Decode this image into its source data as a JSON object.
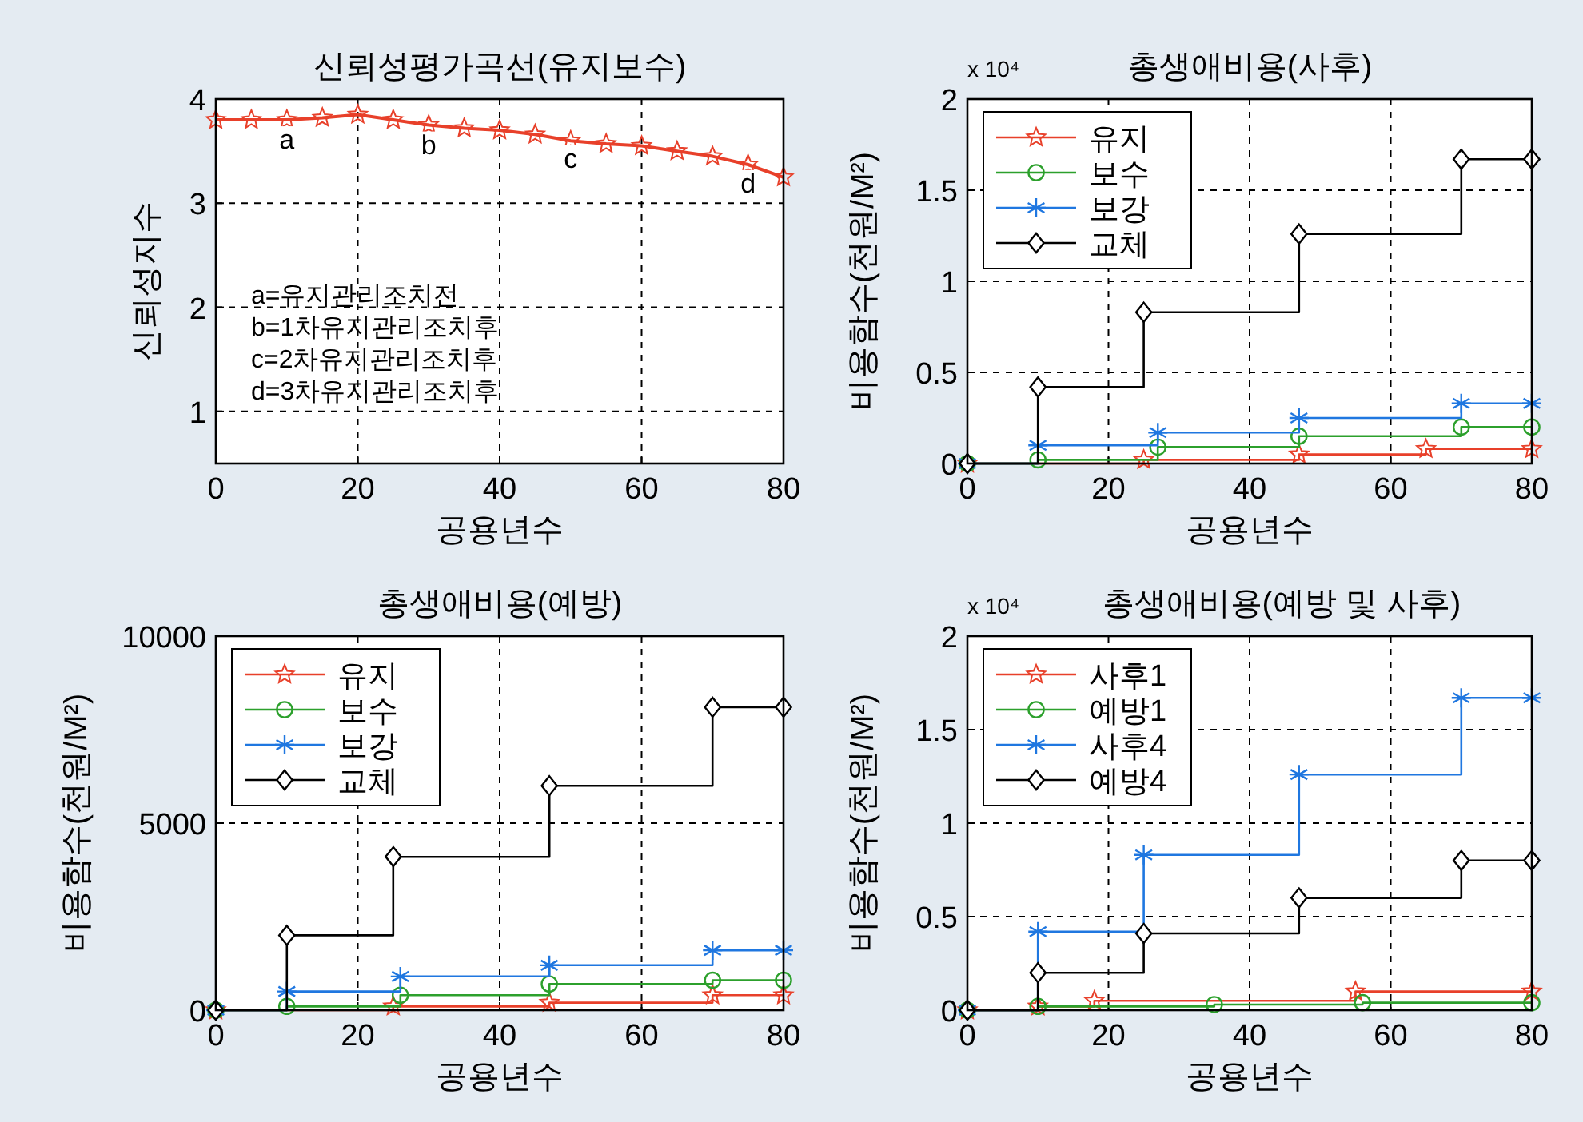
{
  "chart_data": [
    {
      "type": "line",
      "title": "신뢰성평가곡선(유지보수)",
      "xlabel": "공용년수",
      "ylabel": "신뢰성지수",
      "xlim": [
        0,
        80
      ],
      "ylim": [
        0.5,
        4
      ],
      "xticks": [
        0,
        20,
        40,
        60,
        80
      ],
      "yticks": [
        1,
        2,
        3,
        4
      ],
      "grid": true,
      "legend": false,
      "series": [
        {
          "color": "#e8402a",
          "marker": "star",
          "x": [
            0,
            5,
            10,
            15,
            20,
            25,
            30,
            35,
            40,
            45,
            50,
            55,
            60,
            65,
            70,
            75,
            80
          ],
          "values": [
            3.8,
            3.8,
            3.8,
            3.82,
            3.85,
            3.8,
            3.75,
            3.72,
            3.7,
            3.66,
            3.6,
            3.57,
            3.55,
            3.5,
            3.45,
            3.37,
            3.25
          ]
        }
      ],
      "annotations": [
        {
          "text": "a",
          "x": 10,
          "y": 3.8
        },
        {
          "text": "b",
          "x": 30,
          "y": 3.75
        },
        {
          "text": "c",
          "x": 50,
          "y": 3.62
        },
        {
          "text": "d",
          "x": 75,
          "y": 3.38
        },
        "a=유지관리조치전",
        "b=1차유지관리조치후",
        "c=2차유지관리조치후",
        "d=3차유지관리조치후"
      ]
    },
    {
      "type": "step",
      "title": "총생애비용(사후)",
      "xlabel": "공용년수",
      "ylabel": "비용함수(천원/M²)",
      "xlim": [
        0,
        80
      ],
      "ylim": [
        0,
        2
      ],
      "xticks": [
        0,
        20,
        40,
        60,
        80
      ],
      "yticks": [
        0,
        0.5,
        1,
        1.5,
        2
      ],
      "grid": true,
      "legend": "top left",
      "annotations": [
        "x 10⁴"
      ],
      "series": [
        {
          "name": "유지",
          "color": "#e8402a",
          "marker": "star",
          "x": [
            0,
            25,
            47,
            65,
            80
          ],
          "values": [
            0,
            0.02,
            0.05,
            0.08,
            0.08
          ]
        },
        {
          "name": "보수",
          "color": "#2ca02c",
          "marker": "circle",
          "x": [
            0,
            10,
            27,
            47,
            70,
            80
          ],
          "values": [
            0,
            0.02,
            0.09,
            0.15,
            0.2,
            0.2
          ]
        },
        {
          "name": "보강",
          "color": "#1f77e0",
          "marker": "cross",
          "x": [
            0,
            10,
            27,
            47,
            70,
            80
          ],
          "values": [
            0,
            0.1,
            0.17,
            0.25,
            0.33,
            0.33
          ]
        },
        {
          "name": "교체",
          "color": "#000000",
          "marker": "diamond",
          "x": [
            0,
            10,
            25,
            47,
            70,
            80
          ],
          "values": [
            0,
            0.42,
            0.83,
            1.26,
            1.67,
            1.67
          ]
        }
      ]
    },
    {
      "type": "step",
      "title": "총생애비용(예방)",
      "xlabel": "공용년수",
      "ylabel": "비용함수(천원/M²)",
      "xlim": [
        0,
        80
      ],
      "ylim": [
        0,
        10000
      ],
      "xticks": [
        0,
        20,
        40,
        60,
        80
      ],
      "yticks": [
        0,
        5000,
        10000
      ],
      "grid": true,
      "legend": "top left",
      "series": [
        {
          "name": "유지",
          "color": "#e8402a",
          "marker": "star",
          "x": [
            0,
            25,
            47,
            70,
            80
          ],
          "values": [
            0,
            100,
            200,
            400,
            400
          ]
        },
        {
          "name": "보수",
          "color": "#2ca02c",
          "marker": "circle",
          "x": [
            0,
            10,
            26,
            47,
            70,
            80
          ],
          "values": [
            0,
            100,
            400,
            700,
            800,
            800
          ]
        },
        {
          "name": "보강",
          "color": "#1f77e0",
          "marker": "cross",
          "x": [
            0,
            10,
            26,
            47,
            70,
            80
          ],
          "values": [
            0,
            500,
            900,
            1200,
            1600,
            1600
          ]
        },
        {
          "name": "교체",
          "color": "#000000",
          "marker": "diamond",
          "x": [
            0,
            10,
            25,
            47,
            70,
            80
          ],
          "values": [
            0,
            2000,
            4100,
            6000,
            8100,
            8100
          ]
        }
      ]
    },
    {
      "type": "step",
      "title": "총생애비용(예방 및 사후)",
      "xlabel": "공용년수",
      "ylabel": "비용함수(천원/M²)",
      "xlim": [
        0,
        80
      ],
      "ylim": [
        0,
        2
      ],
      "xticks": [
        0,
        20,
        40,
        60,
        80
      ],
      "yticks": [
        0,
        0.5,
        1,
        1.5,
        2
      ],
      "grid": true,
      "legend": "top left",
      "annotations": [
        "x 10⁴"
      ],
      "series": [
        {
          "name": "사후1",
          "color": "#e8402a",
          "marker": "star",
          "x": [
            0,
            10,
            18,
            55,
            80
          ],
          "values": [
            0,
            0.02,
            0.05,
            0.1,
            0.1
          ]
        },
        {
          "name": "예방1",
          "color": "#2ca02c",
          "marker": "circle",
          "x": [
            0,
            10,
            35,
            56,
            80
          ],
          "values": [
            0,
            0.02,
            0.03,
            0.04,
            0.04
          ]
        },
        {
          "name": "사후4",
          "color": "#1f77e0",
          "marker": "cross",
          "x": [
            0,
            10,
            25,
            47,
            70,
            80
          ],
          "values": [
            0,
            0.42,
            0.83,
            1.26,
            1.67,
            1.67
          ]
        },
        {
          "name": "예방4",
          "color": "#000000",
          "marker": "diamond",
          "x": [
            0,
            10,
            25,
            47,
            70,
            80
          ],
          "values": [
            0,
            0.2,
            0.41,
            0.6,
            0.8,
            0.8
          ]
        }
      ]
    }
  ]
}
